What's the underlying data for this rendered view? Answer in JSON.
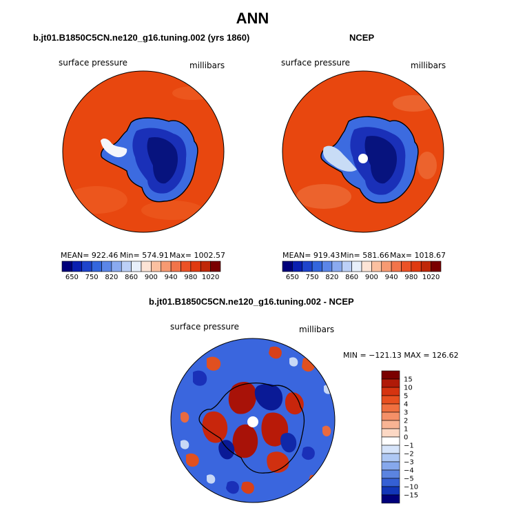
{
  "page": {
    "title": "ANN"
  },
  "panels": [
    {
      "id": "model",
      "subtitle": "b.jt01.B1850C5CN.ne120_g16.tuning.002 (yrs 1860)",
      "left_label": "surface pressure",
      "right_label": "millibars",
      "mean_label": "MEAN= 922.46",
      "min_label": "Min= 574.91",
      "max_label": "Max= 1002.57"
    },
    {
      "id": "ncep",
      "subtitle": "NCEP",
      "left_label": "surface pressure",
      "right_label": "millibars",
      "mean_label": "MEAN= 919.43",
      "min_label": "Min= 581.66",
      "max_label": "Max= 1018.67"
    },
    {
      "id": "diff",
      "subtitle": "b.jt01.B1850C5CN.ne120_g16.tuning.002 - NCEP",
      "left_label": "surface pressure",
      "right_label": "millibars",
      "minmax_label": "MIN = −121.13 MAX = 126.62"
    }
  ],
  "chart_data": [
    {
      "type": "heatmap",
      "projection": "south-polar-stereographic",
      "title": "b.jt01.B1850C5CN.ne120_g16.tuning.002 (yrs 1860)",
      "variable": "surface pressure",
      "units": "millibars",
      "stats": {
        "mean": 922.46,
        "min": 574.91,
        "max": 1002.57
      },
      "colorbar": {
        "orientation": "horizontal",
        "tick_labels": [
          "650",
          "750",
          "820",
          "860",
          "900",
          "940",
          "980",
          "1020"
        ],
        "colors": [
          "#00007a",
          "#0a1fb0",
          "#1e44cc",
          "#3366dd",
          "#5b86e8",
          "#8aaaf0",
          "#bcd0f7",
          "#e8f0fb",
          "#fde4d6",
          "#fbc0a0",
          "#f79a72",
          "#f2744a",
          "#ec5226",
          "#e03a10",
          "#c02808",
          "#7a0000"
        ]
      }
    },
    {
      "type": "heatmap",
      "projection": "south-polar-stereographic",
      "title": "NCEP",
      "variable": "surface pressure",
      "units": "millibars",
      "stats": {
        "mean": 919.43,
        "min": 581.66,
        "max": 1018.67
      },
      "colorbar": {
        "orientation": "horizontal",
        "tick_labels": [
          "650",
          "750",
          "820",
          "860",
          "900",
          "940",
          "980",
          "1020"
        ],
        "colors": [
          "#00007a",
          "#0a1fb0",
          "#1e44cc",
          "#3366dd",
          "#5b86e8",
          "#8aaaf0",
          "#bcd0f7",
          "#e8f0fb",
          "#fde4d6",
          "#fbc0a0",
          "#f79a72",
          "#f2744a",
          "#ec5226",
          "#e03a10",
          "#c02808",
          "#7a0000"
        ]
      }
    },
    {
      "type": "heatmap",
      "projection": "south-polar-stereographic",
      "title": "b.jt01.B1850C5CN.ne120_g16.tuning.002 - NCEP",
      "variable": "surface pressure",
      "units": "millibars",
      "stats": {
        "min": -121.13,
        "max": 126.62
      },
      "colorbar": {
        "orientation": "vertical",
        "tick_labels": [
          "15",
          "10",
          "5",
          "4",
          "3",
          "2",
          "1",
          "0",
          "−1",
          "−2",
          "−3",
          "−4",
          "−5",
          "−10",
          "−15"
        ],
        "colors": [
          "#7a0000",
          "#b01a08",
          "#d63410",
          "#e85020",
          "#f07040",
          "#f59068",
          "#f8b494",
          "#fcd8c4",
          "#ffffff",
          "#d6e4fa",
          "#aec8f4",
          "#86a8ec",
          "#5b84e0",
          "#3560d4",
          "#1236b8",
          "#00007a"
        ]
      }
    }
  ]
}
